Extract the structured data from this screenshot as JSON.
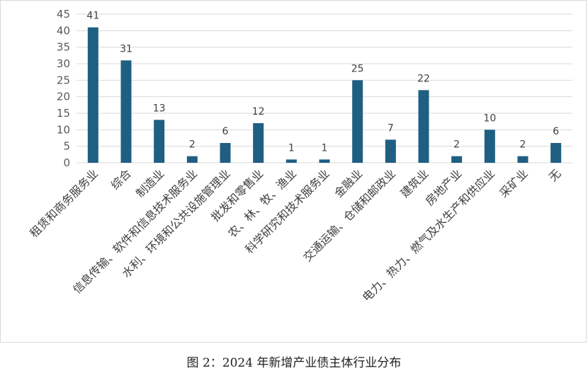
{
  "chart_data": {
    "type": "bar",
    "categories": [
      "租赁和商务服务业",
      "综合",
      "制造业",
      "信息传输、软件和信息技术服务业",
      "水利、环境和公共设施管理业",
      "批发和零售业",
      "农、林、牧、渔业",
      "科学研究和技术服务业",
      "金融业",
      "交通运输、仓储和邮政业",
      "建筑业",
      "房地产业",
      "电力、热力、燃气及水生产和供应业",
      "采矿业",
      "无"
    ],
    "values": [
      41,
      31,
      13,
      2,
      6,
      12,
      1,
      1,
      25,
      7,
      22,
      2,
      10,
      2,
      6
    ],
    "ylim": [
      0,
      45
    ],
    "yticks": [
      0,
      5,
      10,
      15,
      20,
      25,
      30,
      35,
      40,
      45
    ],
    "grid": true,
    "bar_color": "#1f5f82",
    "grid_color": "#d9d9d9"
  },
  "caption": "图 2：2024 年新增产业债主体行业分布"
}
